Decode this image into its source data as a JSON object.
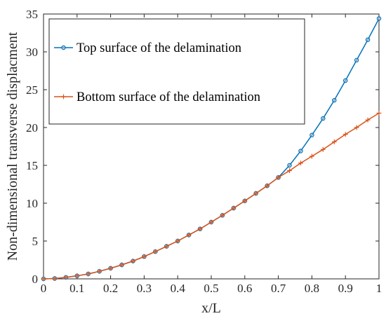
{
  "chart_data": {
    "type": "line",
    "xlabel": "x/L",
    "ylabel": "Non-dimensional transverse displacment",
    "xlim": [
      0,
      1
    ],
    "ylim": [
      0,
      35
    ],
    "xticks": [
      "0",
      "0.1",
      "0.2",
      "0.3",
      "0.4",
      "0.5",
      "0.6",
      "0.7",
      "0.8",
      "0.9",
      "1"
    ],
    "yticks": [
      "0",
      "5",
      "10",
      "15",
      "20",
      "25",
      "30",
      "35"
    ],
    "grid": false,
    "legend_position": "top-left",
    "series": [
      {
        "name": "Top surface of the delamination",
        "color": "#0072BD",
        "marker": "circle",
        "x": [
          0,
          0.0333,
          0.0667,
          0.1,
          0.1333,
          0.1667,
          0.2,
          0.2333,
          0.2667,
          0.3,
          0.3333,
          0.3667,
          0.4,
          0.4333,
          0.4667,
          0.5,
          0.5333,
          0.5667,
          0.6,
          0.6333,
          0.6667,
          0.7,
          0.7333,
          0.7667,
          0.8,
          0.8333,
          0.8667,
          0.9,
          0.9333,
          0.9667,
          1
        ],
        "y": [
          0,
          0.05,
          0.2,
          0.4,
          0.65,
          1.0,
          1.4,
          1.85,
          2.35,
          2.95,
          3.6,
          4.3,
          5.0,
          5.8,
          6.6,
          7.5,
          8.4,
          9.35,
          10.3,
          11.3,
          12.3,
          13.4,
          15.0,
          16.9,
          19.0,
          21.2,
          23.6,
          26.2,
          28.9,
          31.6,
          34.4
        ]
      },
      {
        "name": "Bottom surface of the delamination",
        "color": "#D95319",
        "marker": "plus",
        "x": [
          0,
          0.0333,
          0.0667,
          0.1,
          0.1333,
          0.1667,
          0.2,
          0.2333,
          0.2667,
          0.3,
          0.3333,
          0.3667,
          0.4,
          0.4333,
          0.4667,
          0.5,
          0.5333,
          0.5667,
          0.6,
          0.6333,
          0.6667,
          0.7,
          0.7333,
          0.7667,
          0.8,
          0.8333,
          0.8667,
          0.9,
          0.9333,
          0.9667,
          1
        ],
        "y": [
          0,
          0.05,
          0.2,
          0.4,
          0.65,
          1.0,
          1.4,
          1.85,
          2.35,
          2.95,
          3.6,
          4.3,
          5.0,
          5.8,
          6.6,
          7.5,
          8.4,
          9.35,
          10.3,
          11.3,
          12.3,
          13.4,
          14.3,
          15.3,
          16.2,
          17.1,
          18.1,
          19.1,
          20.0,
          21.0,
          21.9
        ]
      }
    ]
  }
}
